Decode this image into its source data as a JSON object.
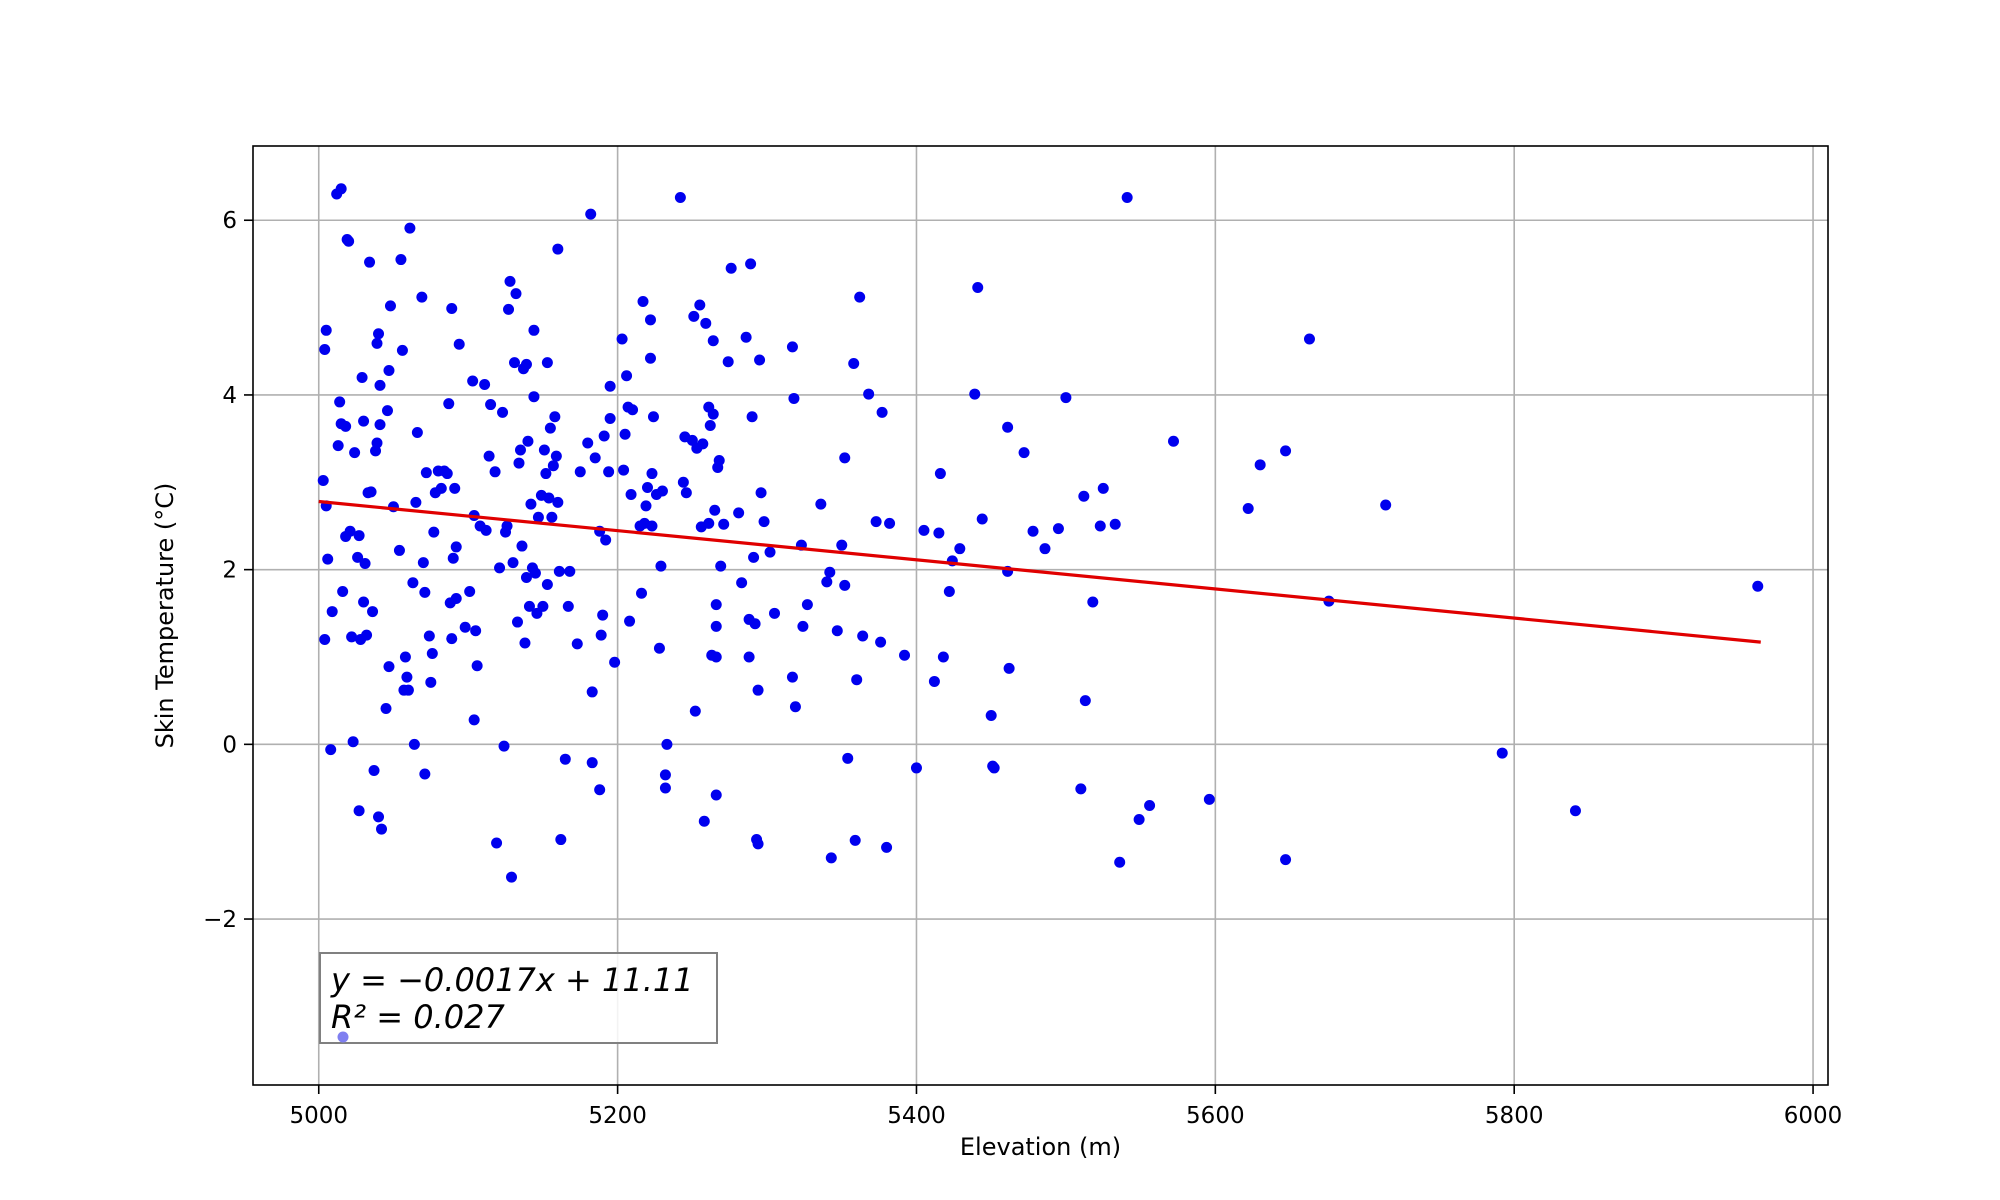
{
  "chart_data": {
    "type": "scatter",
    "title": "",
    "xlabel": "Elevation (m)",
    "ylabel": "Skin Temperature (°C)",
    "xlim": [
      4956,
      6010
    ],
    "ylim": [
      -3.9,
      6.85
    ],
    "xticks": [
      5000,
      5200,
      5400,
      5600,
      5800,
      6000
    ],
    "yticks": [
      -2,
      0,
      2,
      4,
      6
    ],
    "ytick_labels": [
      "−2",
      "0",
      "2",
      "4",
      "6"
    ],
    "grid": true,
    "colors": {
      "points": "#0000ee",
      "fit_line": "#e00000",
      "grid": "#b0b0b0",
      "legend_marker": "#7f7ff0"
    },
    "fit": {
      "slope": -0.0017,
      "intercept": 11.11,
      "x_range": [
        5000,
        5965
      ],
      "y_start": 2.78,
      "y_end": 1.17
    },
    "annotation": {
      "line1": "y = −0.0017x + 11.11",
      "line2": "R² = 0.027",
      "position": "bottom-left"
    },
    "points": [
      [
        5003,
        3.02
      ],
      [
        5004,
        4.52
      ],
      [
        5005,
        2.73
      ],
      [
        5006,
        2.12
      ],
      [
        5004,
        1.2
      ],
      [
        5008,
        -0.06
      ],
      [
        5005,
        4.74
      ],
      [
        5009,
        1.52
      ],
      [
        5012,
        6.3
      ],
      [
        5015,
        6.36
      ],
      [
        5013,
        3.42
      ],
      [
        5014,
        3.92
      ],
      [
        5015,
        3.67
      ],
      [
        5016,
        1.75
      ],
      [
        5018,
        2.38
      ],
      [
        5018,
        3.64
      ],
      [
        5019,
        5.78
      ],
      [
        5020,
        5.76
      ],
      [
        5021,
        2.44
      ],
      [
        5022,
        1.23
      ],
      [
        5023,
        0.03
      ],
      [
        5024,
        3.34
      ],
      [
        5026,
        2.14
      ],
      [
        5027,
        2.39
      ],
      [
        5027,
        -0.76
      ],
      [
        5028,
        1.2
      ],
      [
        5029,
        4.2
      ],
      [
        5030,
        1.63
      ],
      [
        5030,
        3.7
      ],
      [
        5031,
        2.07
      ],
      [
        5032,
        1.25
      ],
      [
        5033,
        2.88
      ],
      [
        5034,
        5.52
      ],
      [
        5035,
        2.89
      ],
      [
        5036,
        1.52
      ],
      [
        5037,
        -0.3
      ],
      [
        5038,
        3.36
      ],
      [
        5039,
        3.45
      ],
      [
        5039,
        4.59
      ],
      [
        5040,
        4.7
      ],
      [
        5040,
        -0.83
      ],
      [
        5041,
        3.66
      ],
      [
        5041,
        4.11
      ],
      [
        5042,
        -0.97
      ],
      [
        5045,
        0.41
      ],
      [
        5046,
        3.82
      ],
      [
        5047,
        0.89
      ],
      [
        5047,
        4.28
      ],
      [
        5048,
        5.02
      ],
      [
        5050,
        2.72
      ],
      [
        5054,
        2.22
      ],
      [
        5055,
        5.55
      ],
      [
        5056,
        4.51
      ],
      [
        5057,
        0.62
      ],
      [
        5058,
        1.0
      ],
      [
        5059,
        0.77
      ],
      [
        5060,
        0.62
      ],
      [
        5061,
        5.91
      ],
      [
        5063,
        1.85
      ],
      [
        5064,
        0.0
      ],
      [
        5065,
        2.77
      ],
      [
        5066,
        3.57
      ],
      [
        5069,
        5.12
      ],
      [
        5070,
        2.08
      ],
      [
        5071,
        1.74
      ],
      [
        5071,
        -0.34
      ],
      [
        5072,
        3.11
      ],
      [
        5074,
        1.24
      ],
      [
        5075,
        0.71
      ],
      [
        5076,
        1.04
      ],
      [
        5077,
        2.43
      ],
      [
        5078,
        2.88
      ],
      [
        5080,
        3.13
      ],
      [
        5082,
        2.93
      ],
      [
        5084,
        3.13
      ],
      [
        5086,
        3.1
      ],
      [
        5087,
        3.9
      ],
      [
        5088,
        1.62
      ],
      [
        5089,
        4.99
      ],
      [
        5089,
        1.21
      ],
      [
        5090,
        2.13
      ],
      [
        5091,
        2.93
      ],
      [
        5092,
        1.67
      ],
      [
        5092,
        2.26
      ],
      [
        5094,
        4.58
      ],
      [
        5098,
        1.34
      ],
      [
        5101,
        1.75
      ],
      [
        5103,
        4.16
      ],
      [
        5104,
        0.28
      ],
      [
        5104,
        2.62
      ],
      [
        5105,
        1.3
      ],
      [
        5106,
        0.9
      ],
      [
        5108,
        2.5
      ],
      [
        5111,
        4.12
      ],
      [
        5112,
        2.45
      ],
      [
        5114,
        3.3
      ],
      [
        5115,
        3.89
      ],
      [
        5118,
        3.12
      ],
      [
        5119,
        -1.13
      ],
      [
        5121,
        2.02
      ],
      [
        5123,
        3.8
      ],
      [
        5124,
        -0.02
      ],
      [
        5125,
        2.43
      ],
      [
        5126,
        2.5
      ],
      [
        5127,
        4.98
      ],
      [
        5128,
        5.3
      ],
      [
        5129,
        -1.52
      ],
      [
        5130,
        2.08
      ],
      [
        5131,
        4.37
      ],
      [
        5132,
        5.16
      ],
      [
        5133,
        1.4
      ],
      [
        5134,
        3.22
      ],
      [
        5135,
        3.37
      ],
      [
        5136,
        2.27
      ],
      [
        5137,
        4.3
      ],
      [
        5138,
        1.16
      ],
      [
        5139,
        1.91
      ],
      [
        5139,
        4.35
      ],
      [
        5140,
        3.47
      ],
      [
        5141,
        1.58
      ],
      [
        5142,
        2.75
      ],
      [
        5143,
        2.02
      ],
      [
        5144,
        4.74
      ],
      [
        5144,
        3.98
      ],
      [
        5145,
        1.96
      ],
      [
        5146,
        1.5
      ],
      [
        5147,
        2.6
      ],
      [
        5149,
        2.85
      ],
      [
        5150,
        1.58
      ],
      [
        5151,
        3.37
      ],
      [
        5152,
        3.1
      ],
      [
        5153,
        1.83
      ],
      [
        5153,
        4.37
      ],
      [
        5154,
        2.82
      ],
      [
        5155,
        3.62
      ],
      [
        5156,
        2.6
      ],
      [
        5157,
        3.19
      ],
      [
        5158,
        3.75
      ],
      [
        5159,
        3.3
      ],
      [
        5160,
        2.77
      ],
      [
        5160,
        5.67
      ],
      [
        5161,
        1.98
      ],
      [
        5162,
        -1.09
      ],
      [
        5165,
        -0.17
      ],
      [
        5167,
        1.58
      ],
      [
        5168,
        1.98
      ],
      [
        5173,
        1.15
      ],
      [
        5175,
        3.12
      ],
      [
        5180,
        3.45
      ],
      [
        5182,
        6.07
      ],
      [
        5183,
        0.6
      ],
      [
        5183,
        -0.21
      ],
      [
        5185,
        3.28
      ],
      [
        5188,
        -0.52
      ],
      [
        5188,
        2.44
      ],
      [
        5189,
        1.25
      ],
      [
        5190,
        1.48
      ],
      [
        5191,
        3.53
      ],
      [
        5192,
        2.34
      ],
      [
        5194,
        3.12
      ],
      [
        5195,
        4.1
      ],
      [
        5195,
        3.73
      ],
      [
        5198,
        0.94
      ],
      [
        5203,
        4.64
      ],
      [
        5204,
        3.14
      ],
      [
        5205,
        3.55
      ],
      [
        5206,
        4.22
      ],
      [
        5207,
        3.86
      ],
      [
        5208,
        1.41
      ],
      [
        5209,
        2.86
      ],
      [
        5210,
        3.83
      ],
      [
        5215,
        2.5
      ],
      [
        5216,
        1.73
      ],
      [
        5217,
        5.07
      ],
      [
        5218,
        2.53
      ],
      [
        5219,
        2.73
      ],
      [
        5220,
        2.94
      ],
      [
        5222,
        4.42
      ],
      [
        5222,
        4.86
      ],
      [
        5223,
        3.1
      ],
      [
        5223,
        2.5
      ],
      [
        5224,
        3.75
      ],
      [
        5226,
        2.86
      ],
      [
        5228,
        1.1
      ],
      [
        5229,
        2.04
      ],
      [
        5230,
        2.9
      ],
      [
        5232,
        -0.35
      ],
      [
        5232,
        -0.5
      ],
      [
        5233,
        0.0
      ],
      [
        5242,
        6.26
      ],
      [
        5244,
        3.0
      ],
      [
        5245,
        3.52
      ],
      [
        5246,
        2.88
      ],
      [
        5250,
        3.48
      ],
      [
        5251,
        4.9
      ],
      [
        5252,
        0.38
      ],
      [
        5253,
        3.39
      ],
      [
        5255,
        5.03
      ],
      [
        5256,
        2.49
      ],
      [
        5257,
        3.44
      ],
      [
        5258,
        -0.88
      ],
      [
        5259,
        4.82
      ],
      [
        5261,
        2.53
      ],
      [
        5261,
        3.86
      ],
      [
        5262,
        3.65
      ],
      [
        5263,
        1.02
      ],
      [
        5264,
        3.78
      ],
      [
        5264,
        4.62
      ],
      [
        5265,
        2.68
      ],
      [
        5266,
        1.6
      ],
      [
        5266,
        1.0
      ],
      [
        5266,
        1.35
      ],
      [
        5266,
        -0.58
      ],
      [
        5267,
        3.17
      ],
      [
        5268,
        3.25
      ],
      [
        5269,
        2.04
      ],
      [
        5271,
        2.52
      ],
      [
        5274,
        4.38
      ],
      [
        5276,
        5.45
      ],
      [
        5281,
        2.65
      ],
      [
        5283,
        1.85
      ],
      [
        5286,
        4.66
      ],
      [
        5288,
        1.43
      ],
      [
        5288,
        1.0
      ],
      [
        5289,
        5.5
      ],
      [
        5290,
        3.75
      ],
      [
        5291,
        2.14
      ],
      [
        5292,
        1.38
      ],
      [
        5293,
        -1.09
      ],
      [
        5294,
        -1.14
      ],
      [
        5294,
        0.62
      ],
      [
        5295,
        4.4
      ],
      [
        5296,
        2.88
      ],
      [
        5298,
        2.55
      ],
      [
        5302,
        2.2
      ],
      [
        5305,
        1.5
      ],
      [
        5317,
        4.55
      ],
      [
        5317,
        0.77
      ],
      [
        5318,
        3.96
      ],
      [
        5319,
        0.43
      ],
      [
        5323,
        2.28
      ],
      [
        5324,
        1.35
      ],
      [
        5327,
        1.6
      ],
      [
        5336,
        2.75
      ],
      [
        5340,
        1.86
      ],
      [
        5342,
        1.97
      ],
      [
        5343,
        -1.3
      ],
      [
        5347,
        1.3
      ],
      [
        5350,
        2.28
      ],
      [
        5352,
        3.28
      ],
      [
        5352,
        1.82
      ],
      [
        5354,
        -0.16
      ],
      [
        5358,
        4.36
      ],
      [
        5359,
        -1.1
      ],
      [
        5360,
        0.74
      ],
      [
        5362,
        5.12
      ],
      [
        5364,
        1.24
      ],
      [
        5368,
        4.01
      ],
      [
        5373,
        2.55
      ],
      [
        5376,
        1.17
      ],
      [
        5377,
        3.8
      ],
      [
        5380,
        -1.18
      ],
      [
        5382,
        2.53
      ],
      [
        5392,
        1.02
      ],
      [
        5400,
        -0.27
      ],
      [
        5405,
        2.45
      ],
      [
        5412,
        0.72
      ],
      [
        5415,
        2.42
      ],
      [
        5416,
        3.1
      ],
      [
        5418,
        1.0
      ],
      [
        5422,
        1.75
      ],
      [
        5424,
        2.1
      ],
      [
        5429,
        2.24
      ],
      [
        5439,
        4.01
      ],
      [
        5441,
        5.23
      ],
      [
        5444,
        2.58
      ],
      [
        5450,
        0.33
      ],
      [
        5451,
        -0.25
      ],
      [
        5452,
        -0.27
      ],
      [
        5461,
        1.98
      ],
      [
        5461,
        3.63
      ],
      [
        5462,
        0.87
      ],
      [
        5472,
        3.34
      ],
      [
        5478,
        2.44
      ],
      [
        5486,
        2.24
      ],
      [
        5495,
        2.47
      ],
      [
        5500,
        3.97
      ],
      [
        5510,
        -0.51
      ],
      [
        5512,
        2.84
      ],
      [
        5513,
        0.5
      ],
      [
        5518,
        1.63
      ],
      [
        5523,
        2.5
      ],
      [
        5525,
        2.93
      ],
      [
        5533,
        2.52
      ],
      [
        5536,
        -1.35
      ],
      [
        5541,
        6.26
      ],
      [
        5549,
        -0.86
      ],
      [
        5556,
        -0.7
      ],
      [
        5572,
        3.47
      ],
      [
        5596,
        -0.63
      ],
      [
        5622,
        2.7
      ],
      [
        5630,
        3.2
      ],
      [
        5647,
        -1.32
      ],
      [
        5647,
        3.36
      ],
      [
        5663,
        4.64
      ],
      [
        5676,
        1.64
      ],
      [
        5714,
        2.74
      ],
      [
        5792,
        -0.1
      ],
      [
        5841,
        -0.76
      ],
      [
        5963,
        1.81
      ]
    ]
  }
}
